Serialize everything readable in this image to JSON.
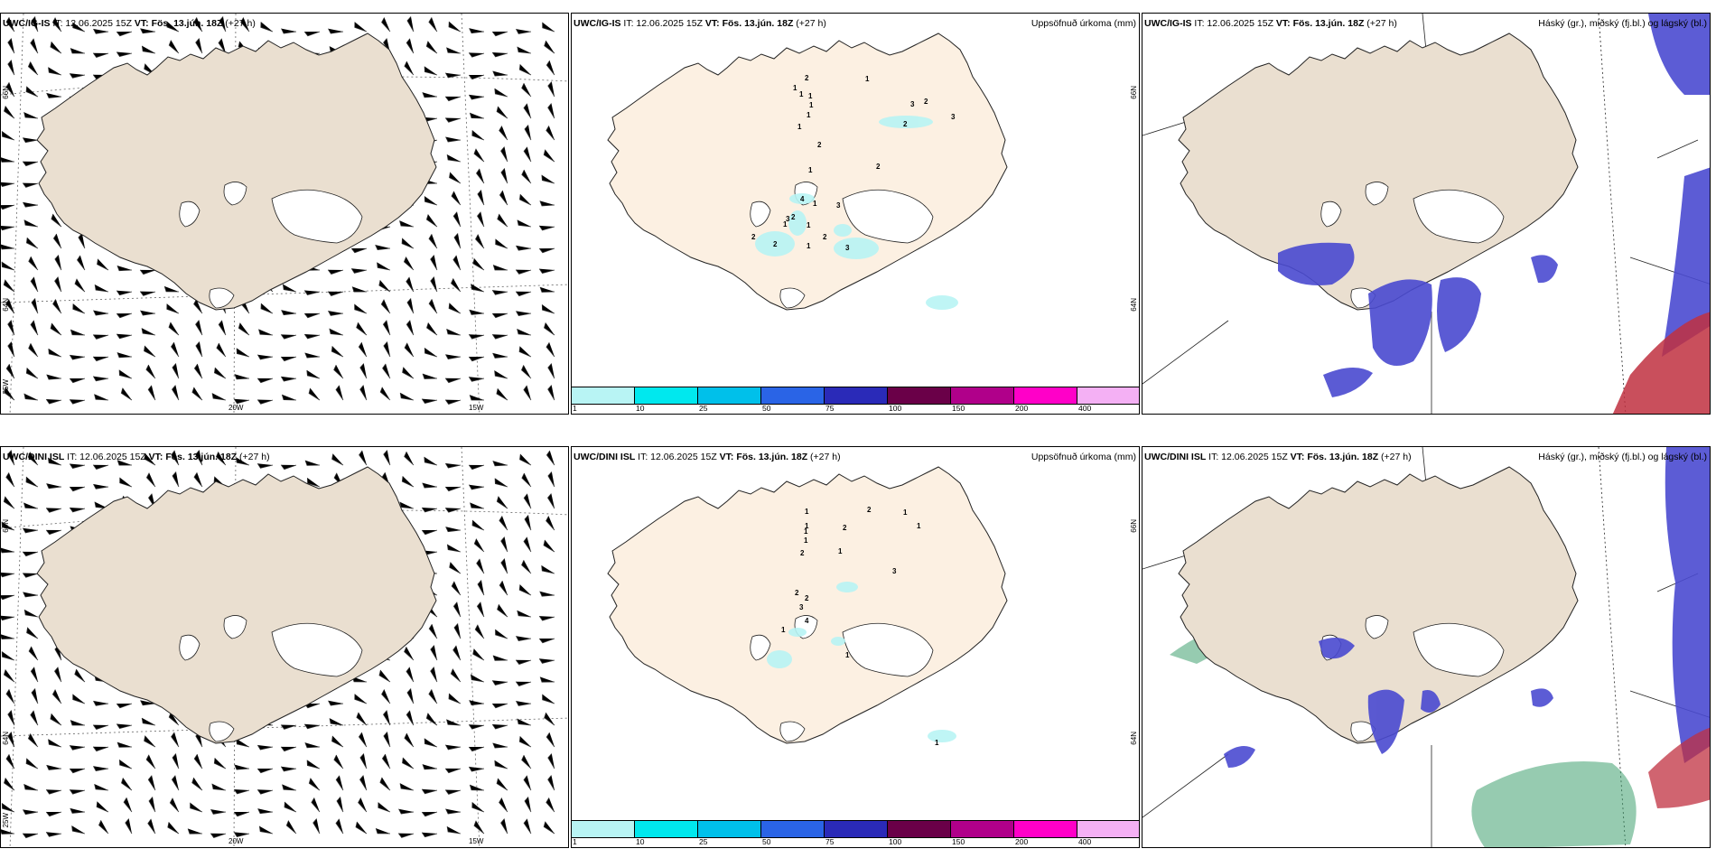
{
  "rows": [
    {
      "model": "UWC/IG-IS",
      "it_label": "IT: 12.06.2025 15Z",
      "vt_label": "VT: Fös. 13.jún. 18Z",
      "lead": "(+27 h)"
    },
    {
      "model": "UWC/DINI ISL",
      "it_label": "IT: 12.06.2025 15Z",
      "vt_label": "VT: Fös. 13.jún. 18Z",
      "lead": "(+27 h)"
    }
  ],
  "precip_title": "Uppsöfnuð úrkoma (mm)",
  "cloud_title": "Háský (gr.), miðský (fj.bl.) og lágský (bl.)",
  "axis_labels": {
    "lat_66": "66N",
    "lat_64": "64N",
    "lon_25": "25W",
    "lon_20": "20W",
    "lon_15": "15W",
    "right_66": "66N",
    "right_64": "64N"
  },
  "colorbar": {
    "ticks": [
      "1",
      "10",
      "25",
      "50",
      "75",
      "100",
      "150",
      "200",
      "400"
    ],
    "colors": [
      "#b8f4f4",
      "#00e8ee",
      "#00c0ea",
      "#2a64e6",
      "#2a2ab8",
      "#6a0048",
      "#b0008a",
      "#ff00c8",
      "#f4b0f4"
    ]
  },
  "precip_values_top": [
    "2",
    "1",
    "1",
    "1",
    "1",
    "1",
    "1",
    "2",
    "1",
    "1",
    "2",
    "2",
    "3",
    "3",
    "2",
    "1",
    "2",
    "3",
    "4",
    "2",
    "2",
    "3",
    "2",
    "3",
    "1",
    "1",
    "1"
  ],
  "precip_values_bottom": [
    "1",
    "1",
    "2",
    "1",
    "1",
    "2",
    "1",
    "1",
    "2",
    "1",
    "3",
    "2",
    "3",
    "2",
    "4",
    "1",
    "1",
    "1"
  ],
  "colors": {
    "land_panel1": "#eadfd0",
    "land_panel2": "#fcf0e2",
    "land_panel3": "#eadfd0",
    "low_cloud": "#4a4ad0",
    "mid_cloud": "#c03040",
    "high_cloud": "#40a070"
  }
}
